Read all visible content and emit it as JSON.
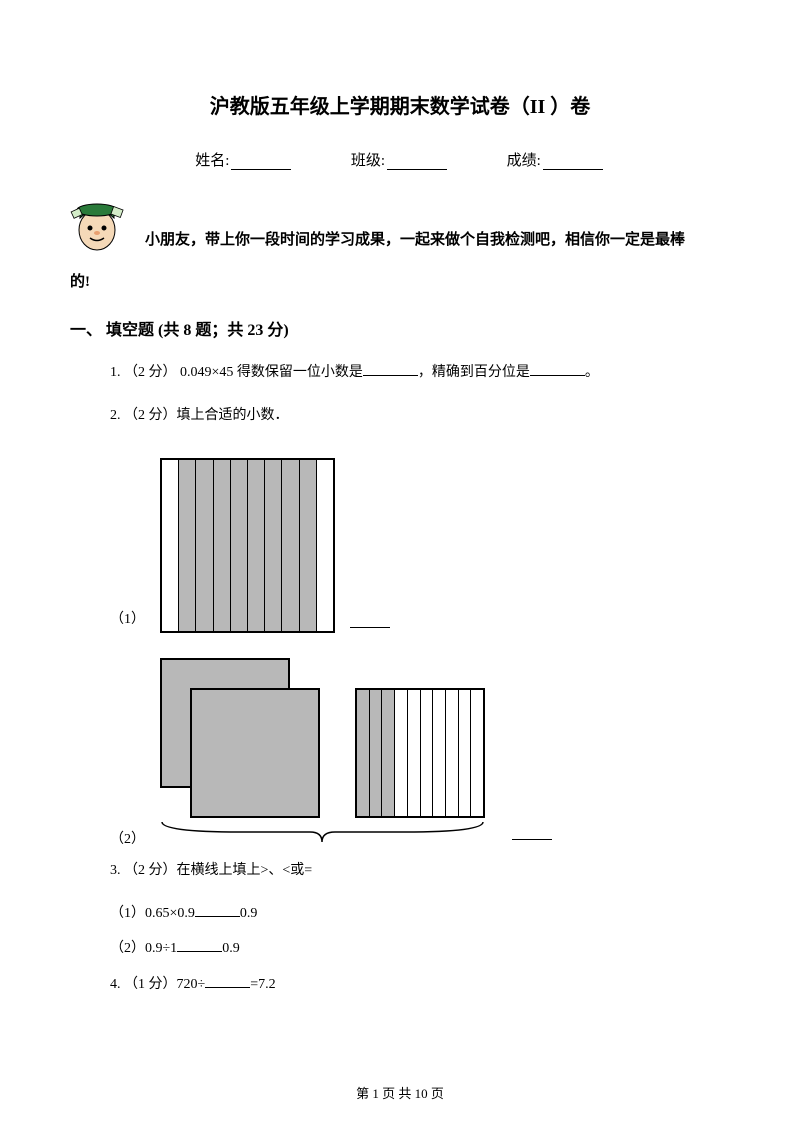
{
  "title": "沪教版五年级上学期期末数学试卷（II ）卷",
  "info": {
    "name_label": "姓名:",
    "class_label": "班级:",
    "score_label": "成绩:"
  },
  "intro_line1": "小朋友，带上你一段时间的学习成果，一起来做个自我检测吧，相信你一定是最棒",
  "intro_line2": "的!",
  "section1": {
    "header": "一、 填空题 (共 8 题；共 23 分)"
  },
  "q1": {
    "prefix": "1. （2 分）  0.049×45 得数保留一位小数是",
    "mid": "，精确到百分位是",
    "suffix": "。"
  },
  "q2": {
    "text": "2. （2 分）填上合适的小数．",
    "sub1_label": "（1）",
    "sub2_label": "（2）"
  },
  "q3": {
    "text": "3. （2 分）在横线上填上>、<或=",
    "sub1": "（1）0.65×0.9",
    "sub1_right": "0.9",
    "sub2": "（2）0.9÷1",
    "sub2_right": "0.9"
  },
  "q4": {
    "prefix": "4. （1 分）720÷",
    "suffix": "=7.2"
  },
  "footer": "第 1 页 共 10 页",
  "figure1": {
    "shaded_cols": [
      false,
      true,
      true,
      true,
      true,
      true,
      true,
      true,
      true,
      false
    ],
    "shade_color": "#b8b8b8",
    "border_color": "#000000"
  },
  "figure2": {
    "grid_shaded": [
      true,
      true,
      true,
      false,
      false,
      false,
      false,
      false,
      false,
      false
    ],
    "shade_color": "#b8b8b8"
  },
  "mascot_colors": {
    "hat": "#2a7a3a",
    "skin": "#f5d9b8",
    "outline": "#000000",
    "paper": "#d4edc9"
  }
}
